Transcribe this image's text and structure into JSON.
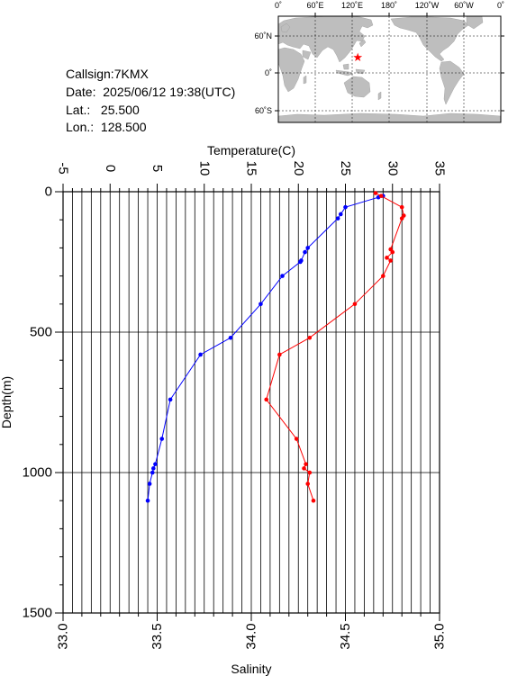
{
  "station": {
    "callsign": "Callsign:7KMX",
    "date": "Date:  2025/06/12 19:38(UTC)",
    "lat": "Lat.:   25.500",
    "lon": "Lon.:  128.500"
  },
  "map": {
    "lon_labels": [
      "0˚",
      "60˚E",
      "120˚E",
      "180˚",
      "120˚W",
      "60˚W",
      "0˚"
    ],
    "lat_labels": [
      "60˚N",
      "0˚",
      "60˚S"
    ],
    "station_marker": {
      "lon": 128.5,
      "lat": 25.5,
      "color": "#ff0000"
    },
    "land_color": "#bebebe",
    "ocean_color": "#ffffff"
  },
  "chart_data": {
    "type": "line",
    "xlabel_top": "Temperature(C)",
    "xlabel_bottom": "Salinity",
    "ylabel": "Depth(m)",
    "temperature_range": [
      -5,
      35
    ],
    "salinity_range": [
      33.0,
      35.0
    ],
    "depth_range": [
      0,
      1500
    ],
    "y_inverted": true,
    "grid": true,
    "temperature_ticks": [
      "-5",
      "0",
      "5",
      "10",
      "15",
      "20",
      "25",
      "30",
      "35"
    ],
    "salinity_ticks": [
      "33.0",
      "33.5",
      "34.0",
      "34.5",
      "35.0"
    ],
    "depth_ticks": [
      "0",
      "500",
      "1000",
      "1500"
    ],
    "series": [
      {
        "quantity": "temperature",
        "color": "#0000ff",
        "points": [
          {
            "depth": 15,
            "value": 29.0
          },
          {
            "depth": 20,
            "value": 28.5
          },
          {
            "depth": 55,
            "value": 25.0
          },
          {
            "depth": 80,
            "value": 24.5
          },
          {
            "depth": 95,
            "value": 24.2
          },
          {
            "depth": 200,
            "value": 21.0
          },
          {
            "depth": 215,
            "value": 20.7
          },
          {
            "depth": 245,
            "value": 20.3
          },
          {
            "depth": 250,
            "value": 20.2
          },
          {
            "depth": 300,
            "value": 18.3
          },
          {
            "depth": 400,
            "value": 16.0
          },
          {
            "depth": 520,
            "value": 12.8
          },
          {
            "depth": 580,
            "value": 9.6
          },
          {
            "depth": 740,
            "value": 6.4
          },
          {
            "depth": 880,
            "value": 5.5
          },
          {
            "depth": 970,
            "value": 4.8
          },
          {
            "depth": 985,
            "value": 4.6
          },
          {
            "depth": 1000,
            "value": 4.5
          },
          {
            "depth": 1040,
            "value": 4.2
          },
          {
            "depth": 1100,
            "value": 4.0
          }
        ]
      },
      {
        "quantity": "salinity",
        "color": "#ff0000",
        "points": [
          {
            "depth": 5,
            "value": 34.66
          },
          {
            "depth": 15,
            "value": 34.69
          },
          {
            "depth": 55,
            "value": 34.8
          },
          {
            "depth": 85,
            "value": 34.81
          },
          {
            "depth": 95,
            "value": 34.8
          },
          {
            "depth": 205,
            "value": 34.74
          },
          {
            "depth": 215,
            "value": 34.75
          },
          {
            "depth": 235,
            "value": 34.72
          },
          {
            "depth": 245,
            "value": 34.74
          },
          {
            "depth": 300,
            "value": 34.7
          },
          {
            "depth": 400,
            "value": 34.55
          },
          {
            "depth": 520,
            "value": 34.31
          },
          {
            "depth": 580,
            "value": 34.15
          },
          {
            "depth": 740,
            "value": 34.08
          },
          {
            "depth": 880,
            "value": 34.24
          },
          {
            "depth": 970,
            "value": 34.29
          },
          {
            "depth": 985,
            "value": 34.28
          },
          {
            "depth": 1000,
            "value": 34.31
          },
          {
            "depth": 1040,
            "value": 34.3
          },
          {
            "depth": 1100,
            "value": 34.33
          }
        ]
      }
    ]
  }
}
